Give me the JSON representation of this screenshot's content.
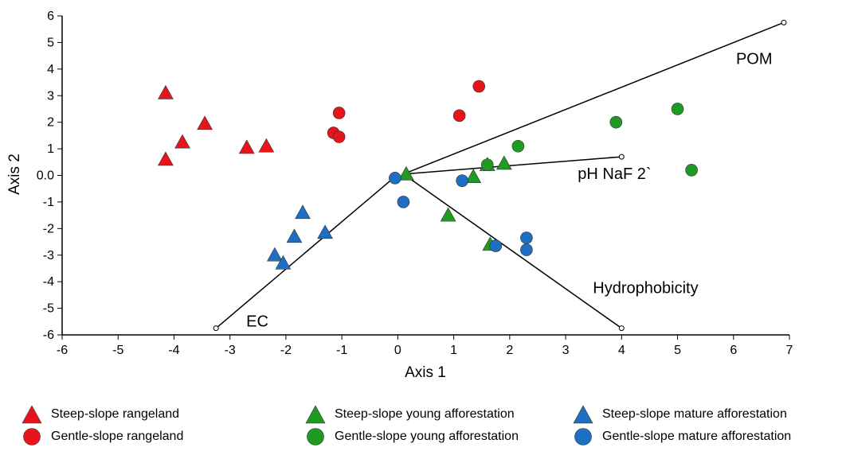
{
  "colors": {
    "rangeland": "#e8141b",
    "young": "#1f9a22",
    "mature": "#1e6fc4",
    "axis": "#000000"
  },
  "chart_data": {
    "type": "scatter",
    "xlabel": "Axis 1",
    "ylabel": "Axis 2",
    "xlim": [
      -6,
      7
    ],
    "ylim": [
      -6,
      6
    ],
    "x_ticks": [
      "-6",
      "-5",
      "-4",
      "-3",
      "-2",
      "-1",
      "0",
      "1",
      "2",
      "3",
      "4",
      "5",
      "6",
      "7"
    ],
    "y_ticks": [
      "6",
      "5",
      "4",
      "3",
      "2",
      "1",
      "0.0",
      "-1",
      "-2",
      "-3",
      "-4",
      "-5",
      "-6"
    ],
    "grid": false,
    "legend_position": "bottom",
    "series": [
      {
        "name": "Steep-slope rangeland",
        "marker": "triangle",
        "color_key": "rangeland",
        "points": [
          [
            -4.15,
            3.1
          ],
          [
            -4.15,
            0.6
          ],
          [
            -3.85,
            1.25
          ],
          [
            -3.45,
            1.95
          ],
          [
            -2.7,
            1.05
          ],
          [
            -2.35,
            1.1
          ]
        ]
      },
      {
        "name": "Gentle-slope rangeland",
        "marker": "circle",
        "color_key": "rangeland",
        "points": [
          [
            -1.05,
            2.35
          ],
          [
            -1.15,
            1.6
          ],
          [
            -1.05,
            1.45
          ],
          [
            1.1,
            2.25
          ],
          [
            1.45,
            3.35
          ]
        ]
      },
      {
        "name": "Steep-slope young afforestation",
        "marker": "triangle",
        "color_key": "young",
        "points": [
          [
            0.15,
            0.05
          ],
          [
            0.9,
            -1.5
          ],
          [
            1.35,
            -0.05
          ],
          [
            1.6,
            0.4
          ],
          [
            1.9,
            0.45
          ],
          [
            1.65,
            -2.6
          ]
        ]
      },
      {
        "name": "Gentle-slope young afforestation",
        "marker": "circle",
        "color_key": "young",
        "points": [
          [
            1.6,
            0.4
          ],
          [
            2.15,
            1.1
          ],
          [
            3.9,
            2.0
          ],
          [
            5.0,
            2.5
          ],
          [
            5.25,
            0.2
          ]
        ]
      },
      {
        "name": "Steep-slope mature afforestation",
        "marker": "triangle",
        "color_key": "mature",
        "points": [
          [
            -1.7,
            -1.4
          ],
          [
            -1.85,
            -2.3
          ],
          [
            -2.2,
            -3.0
          ],
          [
            -2.05,
            -3.3
          ],
          [
            -1.3,
            -2.15
          ]
        ]
      },
      {
        "name": "Gentle-slope mature afforestation",
        "marker": "circle",
        "color_key": "mature",
        "points": [
          [
            -0.05,
            -0.1
          ],
          [
            0.1,
            -1.0
          ],
          [
            1.15,
            -0.2
          ],
          [
            1.75,
            -2.65
          ],
          [
            2.3,
            -2.35
          ],
          [
            2.3,
            -2.8
          ]
        ]
      }
    ],
    "vectors": [
      {
        "label": "POM",
        "from": [
          0.1,
          0.05
        ],
        "to": [
          6.9,
          5.75
        ]
      },
      {
        "label": "pH NaF 2`",
        "from": [
          0.1,
          0.05
        ],
        "to": [
          4.0,
          0.7
        ]
      },
      {
        "label": "Hydrophobicity",
        "from": [
          0.1,
          0.05
        ],
        "to": [
          4.0,
          -5.75
        ]
      },
      {
        "label": "EC",
        "from": [
          -0.05,
          -0.05
        ],
        "to": [
          -3.25,
          -5.75
        ]
      }
    ]
  },
  "legend": [
    {
      "label": "Steep-slope rangeland",
      "marker": "triangle",
      "color_key": "rangeland"
    },
    {
      "label": "Gentle-slope rangeland",
      "marker": "circle",
      "color_key": "rangeland"
    },
    {
      "label": "Steep-slope young afforestation",
      "marker": "triangle",
      "color_key": "young"
    },
    {
      "label": "Gentle-slope young afforestation",
      "marker": "circle",
      "color_key": "young"
    },
    {
      "label": "Steep-slope mature afforestation",
      "marker": "triangle",
      "color_key": "mature"
    },
    {
      "label": "Gentle-slope mature afforestation",
      "marker": "circle",
      "color_key": "mature"
    }
  ]
}
